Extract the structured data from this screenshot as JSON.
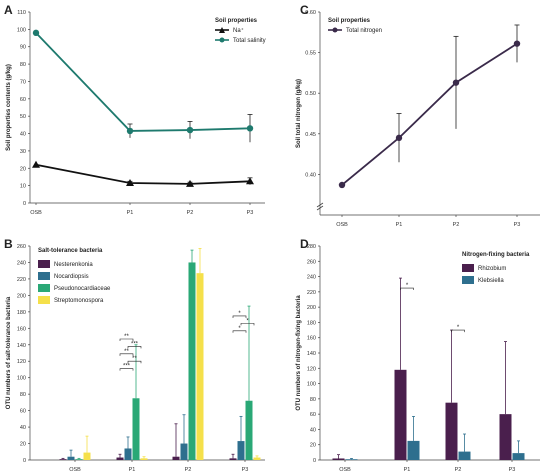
{
  "chart_data": [
    {
      "panel": "A",
      "type": "line",
      "categories": [
        "OSB",
        "P1",
        "P2",
        "P3"
      ],
      "ylabel": "Soil properties contents (g/kg)",
      "ylim": [
        0,
        110
      ],
      "yticks": [
        0,
        10,
        20,
        30,
        40,
        50,
        60,
        70,
        80,
        90,
        100,
        110
      ],
      "legend_title": "Soil properties",
      "legend_position": "top-right",
      "series": [
        {
          "name": "Na⁺",
          "color": "#111111",
          "marker": "triangle",
          "values": [
            22,
            11.5,
            11,
            12.5
          ],
          "errors": [
            0,
            1,
            1,
            2
          ]
        },
        {
          "name": "Total salinity",
          "color": "#1e7a6e",
          "marker": "circle",
          "values": [
            98,
            41.5,
            42,
            43
          ],
          "errors": [
            0,
            4,
            5,
            8
          ]
        }
      ]
    },
    {
      "panel": "C",
      "type": "line",
      "categories": [
        "OSB",
        "P1",
        "P2",
        "P3"
      ],
      "ylabel": "Soil total nitrogen (g/kg)",
      "ylim": [
        0.35,
        0.6
      ],
      "yticks": [
        0.4,
        0.45,
        0.5,
        0.55,
        0.6
      ],
      "ytick_labels": [
        "0.40",
        "0.45",
        "0.50",
        "0.55",
        "0.60"
      ],
      "axis_break": true,
      "legend_title": "Soil properties",
      "legend_position": "top-left",
      "series": [
        {
          "name": "Total nitrogen",
          "color": "#3a2a4a",
          "marker": "circle",
          "values": [
            0.387,
            0.445,
            0.513,
            0.561
          ],
          "errors": [
            0,
            0.03,
            0.057,
            0.023
          ]
        }
      ]
    },
    {
      "panel": "B",
      "type": "bar",
      "categories": [
        "OSB",
        "P1",
        "P2",
        "P3"
      ],
      "ylabel": "OTU numbers of salt-tolerance bacteria",
      "ylim": [
        0,
        260
      ],
      "yticks": [
        0,
        20,
        40,
        60,
        80,
        100,
        120,
        140,
        160,
        180,
        200,
        220,
        240,
        260
      ],
      "legend_title": "Salt-tolerance bacteria",
      "legend_position": "top-left",
      "series": [
        {
          "name": "Nesterenkonia",
          "color": "#4a1f4d",
          "values": [
            1,
            3,
            4,
            2
          ],
          "errors": [
            1,
            4,
            40,
            5
          ]
        },
        {
          "name": "Nocardiopsis",
          "color": "#2e6f8e",
          "values": [
            4,
            14,
            20,
            23
          ],
          "errors": [
            8,
            14,
            35,
            30
          ]
        },
        {
          "name": "Pseudonocardiaceae",
          "color": "#2aa876",
          "values": [
            1,
            75,
            240,
            72
          ],
          "errors": [
            1,
            65,
            15,
            115
          ]
        },
        {
          "name": "Streptomonospora",
          "color": "#f5e04a",
          "values": [
            9,
            2,
            227,
            3
          ],
          "errors": [
            20,
            2,
            30,
            2
          ]
        }
      ],
      "significance": {
        "P1": [
          "**",
          "***",
          "**",
          "**",
          "***"
        ],
        "P3": [
          "*",
          "*",
          "*"
        ]
      }
    },
    {
      "panel": "D",
      "type": "bar",
      "categories": [
        "OSB",
        "P1",
        "P2",
        "P3"
      ],
      "ylabel": "OTU numbers of nitrogen-fixing bacteria",
      "ylim": [
        0,
        280
      ],
      "yticks": [
        0,
        20,
        40,
        60,
        80,
        100,
        120,
        140,
        160,
        180,
        200,
        220,
        240,
        260,
        280
      ],
      "legend_title": "Nitrogen-fixing bacteria",
      "legend_position": "top-right",
      "series": [
        {
          "name": "Rhizobium",
          "color": "#4a1f4d",
          "values": [
            2,
            118,
            75,
            60
          ],
          "errors": [
            5,
            120,
            95,
            95
          ]
        },
        {
          "name": "Klebsiella",
          "color": "#2e6f8e",
          "values": [
            1,
            25,
            11,
            9
          ],
          "errors": [
            1,
            32,
            23,
            16
          ]
        }
      ],
      "significance": {
        "P1": [
          "*"
        ],
        "P2": [
          "*"
        ]
      }
    }
  ]
}
